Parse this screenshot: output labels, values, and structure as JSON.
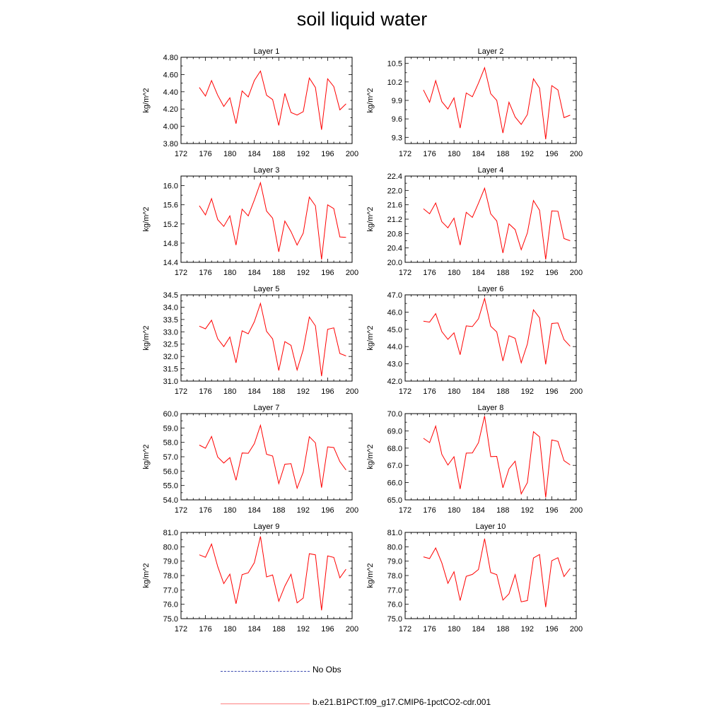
{
  "title": "soil liquid water",
  "legend": [
    {
      "label": "No Obs",
      "color": "#3b4bb0",
      "style": "dashed"
    },
    {
      "label": "b.e21.B1PCT.f09_g17.CMIP6-1pctCO2-cdr.001",
      "color": "#ff0000",
      "style": "solid"
    }
  ],
  "chart_data": [
    {
      "type": "line",
      "title": "Layer 1",
      "ylabel": "kg/m^2",
      "xlim": [
        172,
        200
      ],
      "ylim": [
        3.8,
        4.8
      ],
      "xticks": [
        172,
        176,
        180,
        184,
        188,
        192,
        196,
        200
      ],
      "yticks": [
        3.8,
        4.0,
        4.2,
        4.4,
        4.6,
        4.8
      ],
      "ytick_decimals": 2,
      "x": [
        175,
        176,
        177,
        178,
        179,
        180,
        181,
        182,
        183,
        184,
        185,
        186,
        187,
        188,
        189,
        190,
        191,
        192,
        193,
        194,
        195,
        196,
        197,
        198,
        199
      ],
      "series": [
        {
          "name": "b.e21.B1PCT.f09_g17.CMIP6-1pctCO2-cdr.001",
          "color": "#ff0000",
          "values": [
            4.45,
            4.35,
            4.53,
            4.36,
            4.23,
            4.33,
            4.03,
            4.41,
            4.34,
            4.53,
            4.64,
            4.36,
            4.31,
            4.01,
            4.38,
            4.16,
            4.13,
            4.17,
            4.56,
            4.45,
            3.96,
            4.55,
            4.46,
            4.19,
            4.26
          ]
        }
      ]
    },
    {
      "type": "line",
      "title": "Layer 2",
      "ylabel": "kg/m^2",
      "xlim": [
        172,
        200
      ],
      "ylim": [
        9.2,
        10.6
      ],
      "xticks": [
        172,
        176,
        180,
        184,
        188,
        192,
        196,
        200
      ],
      "yticks": [
        9.3,
        9.6,
        9.9,
        10.2,
        10.5
      ],
      "ytick_decimals": 1,
      "x": [
        175,
        176,
        177,
        178,
        179,
        180,
        181,
        182,
        183,
        184,
        185,
        186,
        187,
        188,
        189,
        190,
        191,
        192,
        193,
        194,
        195,
        196,
        197,
        198,
        199
      ],
      "series": [
        {
          "name": "b.e21.B1PCT.f09_g17.CMIP6-1pctCO2-cdr.001",
          "color": "#ff0000",
          "values": [
            10.07,
            9.87,
            10.22,
            9.88,
            9.76,
            9.94,
            9.45,
            10.02,
            9.96,
            10.18,
            10.43,
            10.01,
            9.9,
            9.37,
            9.87,
            9.63,
            9.51,
            9.67,
            10.25,
            10.1,
            9.27,
            10.14,
            10.07,
            9.62,
            9.66
          ]
        }
      ]
    },
    {
      "type": "line",
      "title": "Layer 3",
      "ylabel": "kg/m^2",
      "xlim": [
        172,
        200
      ],
      "ylim": [
        14.4,
        16.2
      ],
      "xticks": [
        172,
        176,
        180,
        184,
        188,
        192,
        196,
        200
      ],
      "yticks": [
        14.4,
        14.8,
        15.2,
        15.6,
        16.0
      ],
      "ytick_decimals": 1,
      "x": [
        175,
        176,
        177,
        178,
        179,
        180,
        181,
        182,
        183,
        184,
        185,
        186,
        187,
        188,
        189,
        190,
        191,
        192,
        193,
        194,
        195,
        196,
        197,
        198,
        199
      ],
      "series": [
        {
          "name": "b.e21.B1PCT.f09_g17.CMIP6-1pctCO2-cdr.001",
          "color": "#ff0000",
          "values": [
            15.58,
            15.39,
            15.73,
            15.29,
            15.15,
            15.37,
            14.76,
            15.51,
            15.37,
            15.7,
            16.06,
            15.47,
            15.32,
            14.62,
            15.26,
            15.04,
            14.76,
            15.01,
            15.76,
            15.58,
            14.46,
            15.6,
            15.52,
            14.93,
            14.92
          ]
        }
      ]
    },
    {
      "type": "line",
      "title": "Layer 4",
      "ylabel": "kg/m^2",
      "xlim": [
        172,
        200
      ],
      "ylim": [
        20.0,
        22.4
      ],
      "xticks": [
        172,
        176,
        180,
        184,
        188,
        192,
        196,
        200
      ],
      "yticks": [
        20.0,
        20.4,
        20.8,
        21.2,
        21.6,
        22.0,
        22.4
      ],
      "ytick_decimals": 1,
      "x": [
        175,
        176,
        177,
        178,
        179,
        180,
        181,
        182,
        183,
        184,
        185,
        186,
        187,
        188,
        189,
        190,
        191,
        192,
        193,
        194,
        195,
        196,
        197,
        198,
        199
      ],
      "series": [
        {
          "name": "b.e21.B1PCT.f09_g17.CMIP6-1pctCO2-cdr.001",
          "color": "#ff0000",
          "values": [
            21.49,
            21.35,
            21.65,
            21.13,
            20.96,
            21.23,
            20.48,
            21.39,
            21.25,
            21.64,
            22.06,
            21.35,
            21.15,
            20.26,
            21.07,
            20.91,
            20.35,
            20.82,
            21.72,
            21.45,
            20.08,
            21.43,
            21.42,
            20.66,
            20.6
          ]
        }
      ]
    },
    {
      "type": "line",
      "title": "Layer 5",
      "ylabel": "kg/m^2",
      "xlim": [
        172,
        200
      ],
      "ylim": [
        31.0,
        34.5
      ],
      "xticks": [
        172,
        176,
        180,
        184,
        188,
        192,
        196,
        200
      ],
      "yticks": [
        31.0,
        31.5,
        32.0,
        32.5,
        33.0,
        33.5,
        34.0,
        34.5
      ],
      "ytick_decimals": 1,
      "x": [
        175,
        176,
        177,
        178,
        179,
        180,
        181,
        182,
        183,
        184,
        185,
        186,
        187,
        188,
        189,
        190,
        191,
        192,
        193,
        194,
        195,
        196,
        197,
        198,
        199
      ],
      "series": [
        {
          "name": "b.e21.B1PCT.f09_g17.CMIP6-1pctCO2-cdr.001",
          "color": "#ff0000",
          "values": [
            33.23,
            33.12,
            33.47,
            32.72,
            32.4,
            32.79,
            31.74,
            33.04,
            32.92,
            33.41,
            34.15,
            33.02,
            32.71,
            31.43,
            32.6,
            32.45,
            31.45,
            32.28,
            33.6,
            33.24,
            31.2,
            33.1,
            33.16,
            32.12,
            32.02
          ]
        }
      ]
    },
    {
      "type": "line",
      "title": "Layer 6",
      "ylabel": "kg/m^2",
      "xlim": [
        172,
        200
      ],
      "ylim": [
        42.0,
        47.0
      ],
      "xticks": [
        172,
        176,
        180,
        184,
        188,
        192,
        196,
        200
      ],
      "yticks": [
        42.0,
        43.0,
        44.0,
        45.0,
        46.0,
        47.0
      ],
      "ytick_decimals": 1,
      "x": [
        175,
        176,
        177,
        178,
        179,
        180,
        181,
        182,
        183,
        184,
        185,
        186,
        187,
        188,
        189,
        190,
        191,
        192,
        193,
        194,
        195,
        196,
        197,
        198,
        199
      ],
      "series": [
        {
          "name": "b.e21.B1PCT.f09_g17.CMIP6-1pctCO2-cdr.001",
          "color": "#ff0000",
          "values": [
            45.47,
            45.42,
            45.91,
            44.87,
            44.42,
            44.8,
            43.53,
            45.2,
            45.16,
            45.61,
            46.79,
            45.18,
            44.85,
            43.17,
            44.63,
            44.48,
            43.06,
            44.15,
            46.13,
            45.67,
            42.97,
            45.34,
            45.37,
            44.4,
            44.02
          ]
        }
      ]
    },
    {
      "type": "line",
      "title": "Layer 7",
      "ylabel": "kg/m^2",
      "xlim": [
        172,
        200
      ],
      "ylim": [
        54.0,
        60.0
      ],
      "xticks": [
        172,
        176,
        180,
        184,
        188,
        192,
        196,
        200
      ],
      "yticks": [
        54.0,
        55.0,
        56.0,
        57.0,
        58.0,
        59.0,
        60.0
      ],
      "ytick_decimals": 1,
      "x": [
        175,
        176,
        177,
        178,
        179,
        180,
        181,
        182,
        183,
        184,
        185,
        186,
        187,
        188,
        189,
        190,
        191,
        192,
        193,
        194,
        195,
        196,
        197,
        198,
        199
      ],
      "series": [
        {
          "name": "b.e21.B1PCT.f09_g17.CMIP6-1pctCO2-cdr.001",
          "color": "#ff0000",
          "values": [
            57.81,
            57.59,
            58.41,
            56.98,
            56.56,
            56.94,
            55.36,
            57.26,
            57.24,
            57.9,
            59.19,
            57.17,
            57.05,
            55.13,
            56.48,
            56.52,
            54.81,
            55.93,
            58.39,
            57.97,
            54.85,
            57.69,
            57.64,
            56.66,
            56.08
          ]
        }
      ]
    },
    {
      "type": "line",
      "title": "Layer 8",
      "ylabel": "kg/m^2",
      "xlim": [
        172,
        200
      ],
      "ylim": [
        65.0,
        70.0
      ],
      "xticks": [
        172,
        176,
        180,
        184,
        188,
        192,
        196,
        200
      ],
      "yticks": [
        65.0,
        66.0,
        67.0,
        68.0,
        69.0,
        70.0
      ],
      "ytick_decimals": 1,
      "x": [
        175,
        176,
        177,
        178,
        179,
        180,
        181,
        182,
        183,
        184,
        185,
        186,
        187,
        188,
        189,
        190,
        191,
        192,
        193,
        194,
        195,
        196,
        197,
        198,
        199
      ],
      "series": [
        {
          "name": "b.e21.B1PCT.f09_g17.CMIP6-1pctCO2-cdr.001",
          "color": "#ff0000",
          "values": [
            68.57,
            68.32,
            69.28,
            67.64,
            67.02,
            67.5,
            65.63,
            67.71,
            67.72,
            68.31,
            69.86,
            67.51,
            67.52,
            65.7,
            66.8,
            67.24,
            65.35,
            66.0,
            68.95,
            68.65,
            65.14,
            68.47,
            68.39,
            67.27,
            67.03
          ]
        }
      ]
    },
    {
      "type": "line",
      "title": "Layer 9",
      "ylabel": "kg/m^2",
      "xlim": [
        172,
        200
      ],
      "ylim": [
        75.0,
        81.0
      ],
      "xticks": [
        172,
        176,
        180,
        184,
        188,
        192,
        196,
        200
      ],
      "yticks": [
        75.0,
        76.0,
        77.0,
        78.0,
        79.0,
        80.0,
        81.0
      ],
      "ytick_decimals": 1,
      "x": [
        175,
        176,
        177,
        178,
        179,
        180,
        181,
        182,
        183,
        184,
        185,
        186,
        187,
        188,
        189,
        190,
        191,
        192,
        193,
        194,
        195,
        196,
        197,
        198,
        199
      ],
      "series": [
        {
          "name": "b.e21.B1PCT.f09_g17.CMIP6-1pctCO2-cdr.001",
          "color": "#ff0000",
          "values": [
            79.44,
            79.27,
            80.19,
            78.63,
            77.44,
            78.1,
            76.04,
            78.06,
            78.19,
            78.89,
            80.72,
            77.9,
            78.04,
            76.21,
            77.26,
            78.09,
            76.1,
            76.43,
            79.52,
            79.44,
            75.58,
            79.36,
            79.26,
            77.84,
            78.44
          ]
        }
      ]
    },
    {
      "type": "line",
      "title": "Layer 10",
      "ylabel": "kg/m^2",
      "xlim": [
        172,
        200
      ],
      "ylim": [
        75.0,
        81.0
      ],
      "xticks": [
        172,
        176,
        180,
        184,
        188,
        192,
        196,
        200
      ],
      "yticks": [
        75.0,
        76.0,
        77.0,
        78.0,
        79.0,
        80.0,
        81.0
      ],
      "ytick_decimals": 1,
      "x": [
        175,
        176,
        177,
        178,
        179,
        180,
        181,
        182,
        183,
        184,
        185,
        186,
        187,
        188,
        189,
        190,
        191,
        192,
        193,
        194,
        195,
        196,
        197,
        198,
        199
      ],
      "series": [
        {
          "name": "b.e21.B1PCT.f09_g17.CMIP6-1pctCO2-cdr.001",
          "color": "#ff0000",
          "values": [
            79.3,
            79.18,
            79.92,
            78.88,
            77.46,
            78.26,
            76.26,
            77.94,
            78.08,
            78.42,
            80.56,
            78.21,
            78.06,
            76.29,
            76.73,
            78.06,
            76.17,
            76.26,
            79.22,
            79.46,
            75.8,
            79.03,
            79.24,
            77.93,
            78.49
          ]
        }
      ]
    }
  ]
}
